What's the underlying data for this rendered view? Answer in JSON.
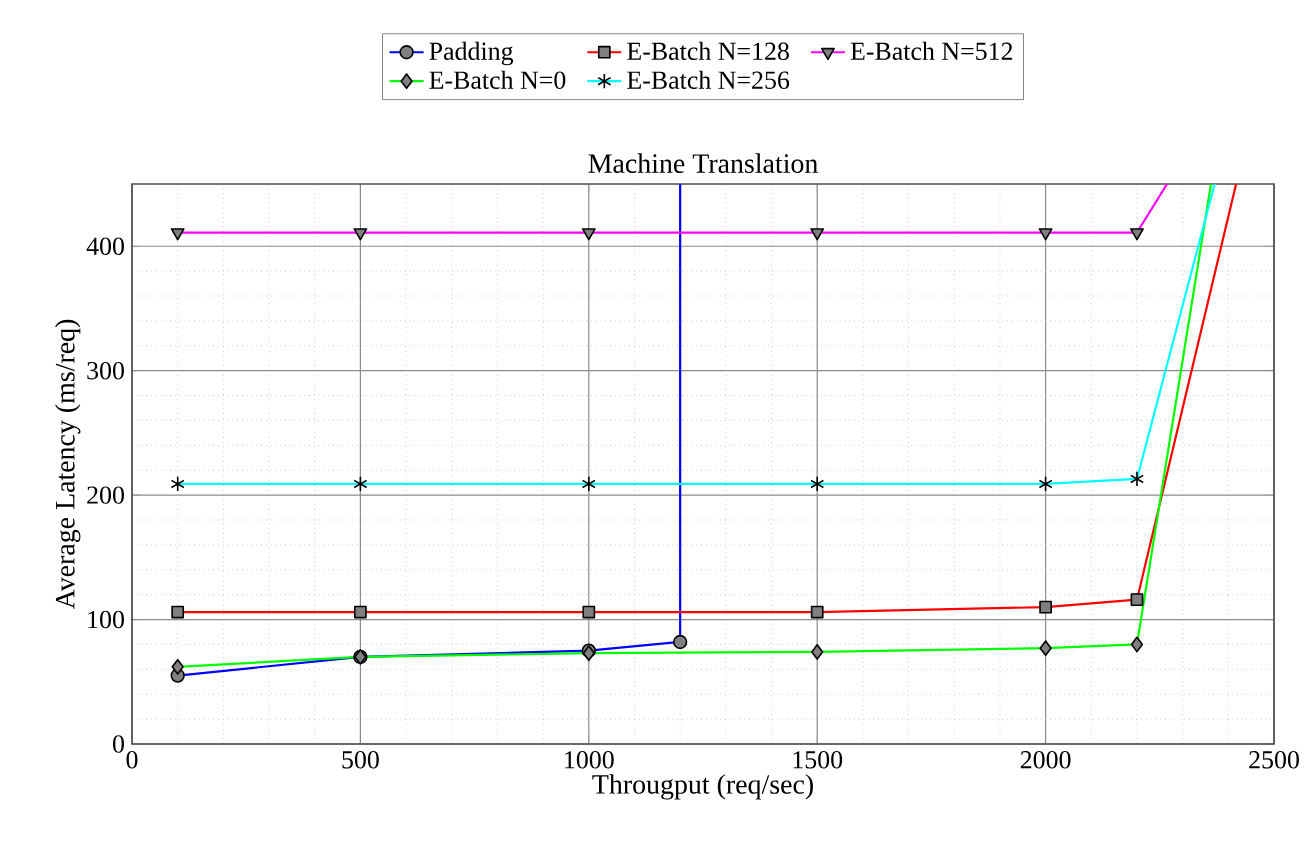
{
  "chart_data": {
    "type": "line",
    "title": "Machine Translation",
    "xlabel": "Througput (req/sec)",
    "ylabel": "Average Latency (ms/req)",
    "xlim": [
      0,
      2500
    ],
    "ylim": [
      0,
      450
    ],
    "xticks": [
      0,
      500,
      1000,
      1500,
      2000,
      2500
    ],
    "yticks": [
      0,
      100,
      200,
      300,
      400
    ],
    "grid": true,
    "legend": "top",
    "line_style": "solid",
    "series": [
      {
        "name": "Padding",
        "color": "#0000ff",
        "marker": "circle",
        "x": [
          100,
          500,
          1000,
          1200,
          1200
        ],
        "values": [
          55,
          70,
          75,
          82,
          450
        ]
      },
      {
        "name": "E-Batch N=128",
        "color": "#ff0000",
        "marker": "square",
        "x": [
          100,
          500,
          1000,
          1500,
          2000,
          2200,
          2417
        ],
        "values": [
          106,
          106,
          106,
          106,
          110,
          116,
          450
        ]
      },
      {
        "name": "E-Batch N=512",
        "color": "#ff00ff",
        "marker": "triangle",
        "x": [
          100,
          500,
          1000,
          1500,
          2000,
          2200,
          2266
        ],
        "values": [
          411,
          411,
          411,
          411,
          411,
          411,
          450
        ]
      },
      {
        "name": "E-Batch N=0",
        "color": "#00ff00",
        "marker": "diamond",
        "x": [
          100,
          500,
          1000,
          1500,
          2000,
          2200,
          2362
        ],
        "values": [
          62,
          70,
          73,
          74,
          77,
          80,
          450
        ]
      },
      {
        "name": "E-Batch N=256",
        "color": "#00ffff",
        "marker": "cross",
        "x": [
          100,
          500,
          1000,
          1500,
          2000,
          2200,
          2370
        ],
        "values": [
          209,
          209,
          209,
          209,
          209,
          213,
          450
        ]
      }
    ]
  }
}
